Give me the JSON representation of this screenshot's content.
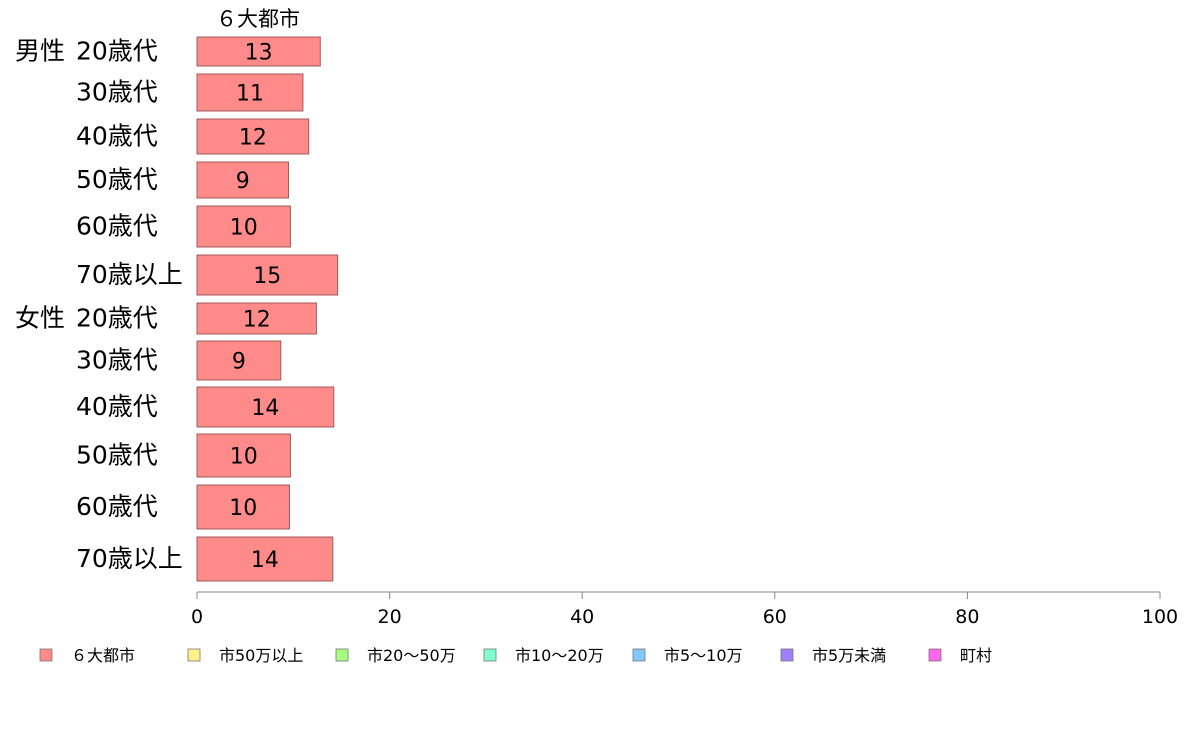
{
  "chart_data": {
    "type": "bar",
    "orientation": "horizontal",
    "stacked": true,
    "series_header": "６大都市",
    "groups": [
      {
        "label": "男性",
        "categories": [
          "20歳代",
          "30歳代",
          "40歳代",
          "50歳代",
          "60歳代",
          "70歳以上"
        ]
      },
      {
        "label": "女性",
        "categories": [
          "20歳代",
          "30歳代",
          "40歳代",
          "50歳代",
          "60歳代",
          "70歳以上"
        ]
      }
    ],
    "series": [
      {
        "name": "６大都市",
        "color": "#ff8a8a",
        "values": [
          12.8,
          11.0,
          11.6,
          9.5,
          9.7,
          14.6,
          12.4,
          8.7,
          14.2,
          9.7,
          9.6,
          14.1
        ],
        "labels": [
          "13",
          "11",
          "12",
          "9",
          "10",
          "15",
          "12",
          "9",
          "14",
          "10",
          "10",
          "14"
        ]
      },
      {
        "name": "市50万以上",
        "color": "#fff08a",
        "values": []
      },
      {
        "name": "市20〜50万",
        "color": "#a6ff80",
        "values": []
      },
      {
        "name": "市10〜20万",
        "color": "#80ffcc",
        "values": []
      },
      {
        "name": "市5〜10万",
        "color": "#80c8ff",
        "values": []
      },
      {
        "name": "市5万未満",
        "color": "#a080ff",
        "values": []
      },
      {
        "name": "町村",
        "color": "#ff66ee",
        "values": []
      }
    ],
    "xlim": [
      0,
      100
    ],
    "xticks": [
      "0",
      "20",
      "40",
      "60",
      "80",
      "100"
    ],
    "grid": false,
    "legend_position": "bottom"
  }
}
